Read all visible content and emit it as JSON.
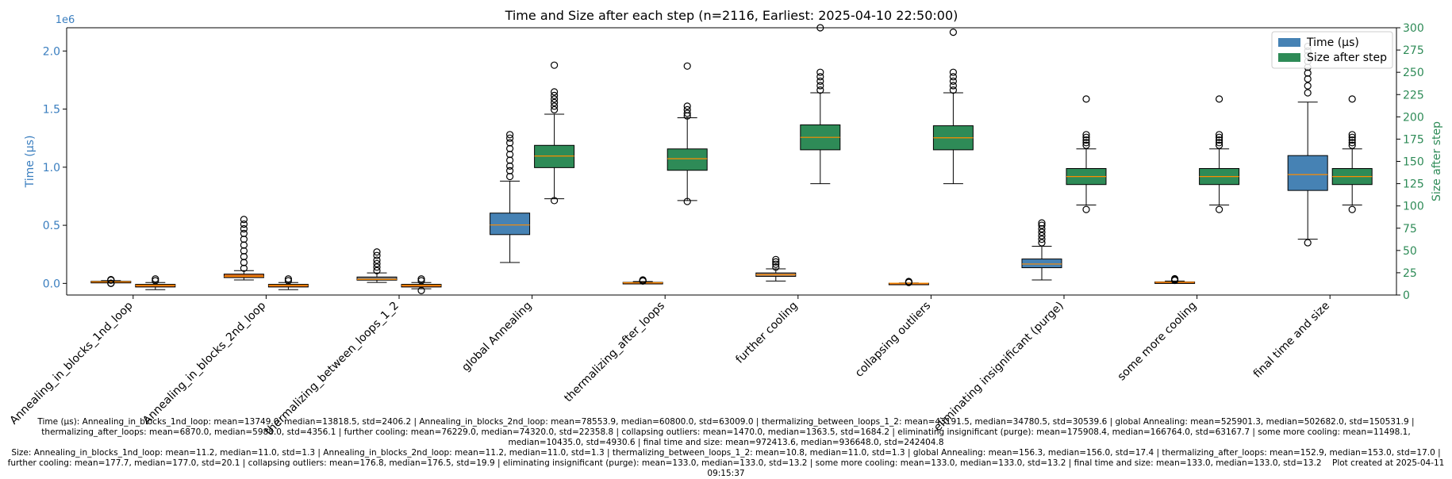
{
  "chart_data": {
    "type": "box",
    "title": "Time and Size after each step (n=2116, Earliest: 2025-04-10 22:50:00)",
    "y_left": {
      "label": "Time (µs)",
      "multiplier": "1e6",
      "range": [
        -0.1,
        2.2
      ],
      "ticks": [
        0.0,
        0.5,
        1.0,
        1.5,
        2.0
      ],
      "tick_labels": [
        "0.0",
        "0.5",
        "1.0",
        "1.5",
        "2.0"
      ],
      "color": "#3a7ebf"
    },
    "y_right": {
      "label": "Size after step",
      "range": [
        0,
        300
      ],
      "ticks": [
        0,
        25,
        50,
        75,
        100,
        125,
        150,
        175,
        200,
        225,
        250,
        275,
        300
      ],
      "tick_labels": [
        "0",
        "25",
        "50",
        "75",
        "100",
        "125",
        "150",
        "175",
        "200",
        "225",
        "250",
        "275",
        "300"
      ],
      "color": "#2e8b57"
    },
    "categories": [
      "Annealing_in_blocks_1nd_loop",
      "Annealing_in_blocks_2nd_loop",
      "thermalizing_between_loops_1_2",
      "global Annealing",
      "thermalizing_after_loops",
      "further cooling",
      "collapsing outliers",
      "eliminating insignificant (purge)",
      "some more cooling",
      "final time and size"
    ],
    "legend": {
      "position": "top-right",
      "entries": [
        {
          "label": "Time (µs)",
          "color": "#4682b4"
        },
        {
          "label": "Size after step",
          "color": "#2e8b57"
        }
      ]
    },
    "series": [
      {
        "name": "Time (µs)",
        "axis": "left",
        "box_colors": [
          "#d2691e",
          "#d2691e",
          "#808080",
          "#4682b4",
          "#d2691e",
          "#a0826d",
          "#d2691e",
          "#4682b4",
          "#d2691e",
          "#4682b4"
        ],
        "boxes": [
          {
            "q1": 10000,
            "median": 13818.5,
            "q3": 18000,
            "whislo": 6000,
            "whishi": 24000,
            "fliers": [
              0,
              2000,
              28000,
              32000
            ]
          },
          {
            "q1": 50000,
            "median": 60800,
            "q3": 80000,
            "whislo": 30000,
            "whishi": 110000,
            "fliers": [
              130000,
              180000,
              230000,
              280000,
              330000,
              380000,
              430000,
              470000,
              510000,
              550000
            ]
          },
          {
            "q1": 28000,
            "median": 34780.5,
            "q3": 55000,
            "whislo": 8000,
            "whishi": 90000,
            "fliers": [
              110000,
              140000,
              170000,
              200000,
              240000,
              270000
            ]
          },
          {
            "q1": 420000,
            "median": 502682,
            "q3": 605000,
            "whislo": 180000,
            "whishi": 880000,
            "fliers": [
              920000,
              970000,
              1010000,
              1060000,
              1110000,
              1160000,
              1210000,
              1250000,
              1280000
            ]
          },
          {
            "q1": 3000,
            "median": 5988,
            "q3": 9000,
            "whislo": 0,
            "whishi": 16000,
            "fliers": [
              20000,
              25000,
              30000
            ]
          },
          {
            "q1": 60000,
            "median": 74320,
            "q3": 90000,
            "whislo": 20000,
            "whishi": 125000,
            "fliers": [
              140000,
              165000,
              185000,
              205000
            ]
          },
          {
            "q1": 500,
            "median": 1363.5,
            "q3": 2000,
            "whislo": 0,
            "whishi": 4000,
            "fliers": [
              8000,
              12000,
              16000
            ]
          },
          {
            "q1": 135000,
            "median": 166764,
            "q3": 210000,
            "whislo": 30000,
            "whishi": 320000,
            "fliers": [
              350000,
              380000,
              410000,
              440000,
              470000,
              500000,
              520000
            ]
          },
          {
            "q1": 8000,
            "median": 10435,
            "q3": 13000,
            "whislo": 4000,
            "whishi": 20000,
            "fliers": [
              26000,
              33000,
              40000
            ]
          },
          {
            "q1": 800000,
            "median": 936648,
            "q3": 1100000,
            "whislo": 380000,
            "whishi": 1560000,
            "fliers": [
              350000,
              1640000,
              1700000,
              1760000,
              1810000,
              1860000,
              1910000,
              1960000,
              2000000,
              2040000
            ]
          }
        ]
      },
      {
        "name": "Size after step",
        "axis": "right",
        "box_colors": [
          "#d2691e",
          "#d2691e",
          "#d2691e",
          "#2e8b57",
          "#2e8b57",
          "#2e8b57",
          "#2e8b57",
          "#2e8b57",
          "#2e8b57",
          "#2e8b57"
        ],
        "boxes": [
          {
            "q1": 9,
            "median": 11,
            "q3": 12,
            "whislo": 6,
            "whishi": 14,
            "fliers": [
              16,
              18
            ]
          },
          {
            "q1": 9,
            "median": 11,
            "q3": 12,
            "whislo": 6,
            "whishi": 14,
            "fliers": [
              16,
              18
            ]
          },
          {
            "q1": 9,
            "median": 11,
            "q3": 12,
            "whislo": 7,
            "whishi": 14,
            "fliers": [
              5,
              16,
              18
            ]
          },
          {
            "q1": 143,
            "median": 156,
            "q3": 168,
            "whislo": 108,
            "whishi": 203,
            "fliers": [
              106,
              208,
              212,
              216,
              220,
              224,
              228,
              258
            ]
          },
          {
            "q1": 140,
            "median": 153,
            "q3": 164,
            "whislo": 106,
            "whishi": 199,
            "fliers": [
              105,
              201,
              204,
              208,
              212,
              257
            ]
          },
          {
            "q1": 163,
            "median": 177,
            "q3": 191,
            "whislo": 125,
            "whishi": 227,
            "fliers": [
              230,
              235,
              240,
              245,
              250,
              300
            ]
          },
          {
            "q1": 163,
            "median": 176.5,
            "q3": 190,
            "whislo": 125,
            "whishi": 227,
            "fliers": [
              230,
              235,
              240,
              245,
              250,
              295
            ]
          },
          {
            "q1": 124,
            "median": 133,
            "q3": 142,
            "whislo": 101,
            "whishi": 164,
            "fliers": [
              96,
              168,
              171,
              174,
              177,
              180,
              220
            ]
          },
          {
            "q1": 124,
            "median": 133,
            "q3": 142,
            "whislo": 101,
            "whishi": 164,
            "fliers": [
              96,
              168,
              171,
              174,
              177,
              180,
              220
            ]
          },
          {
            "q1": 124,
            "median": 133,
            "q3": 142,
            "whislo": 101,
            "whishi": 164,
            "fliers": [
              96,
              168,
              171,
              174,
              177,
              180,
              220
            ]
          }
        ]
      }
    ],
    "grid": false
  },
  "footer": {
    "time_line": "Time (µs): Annealing_in_blocks_1nd_loop: mean=13749.0, median=13818.5, std=2406.2 | Annealing_in_blocks_2nd_loop: mean=78553.9, median=60800.0, std=63009.0 | thermalizing_between_loops_1_2: mean=43191.5, median=34780.5, std=30539.6 | global Annealing: mean=525901.3, median=502682.0, std=150531.9 | thermalizing_after_loops: mean=6870.0, median=5988.0, std=4356.1 | further cooling: mean=76229.0, median=74320.0, std=22358.8 | collapsing outliers: mean=1470.0, median=1363.5, std=1684.2 | eliminating insignificant (purge): mean=175908.4, median=166764.0, std=63167.7 | some more cooling: mean=11498.1, median=10435.0, std=4930.6 | final time and size: mean=972413.6, median=936648.0, std=242404.8",
    "size_line": "Size: Annealing_in_blocks_1nd_loop: mean=11.2, median=11.0, std=1.3 | Annealing_in_blocks_2nd_loop: mean=11.2, median=11.0, std=1.3 | thermalizing_between_loops_1_2: mean=10.8, median=11.0, std=1.3 | global Annealing: mean=156.3, median=156.0, std=17.4 | thermalizing_after_loops: mean=152.9, median=153.0, std=17.0 | further cooling: mean=177.7, median=177.0, std=20.1 | collapsing outliers: mean=176.8, median=176.5, std=19.9 | eliminating insignificant (purge): mean=133.0, median=133.0, std=13.2 | some more cooling: mean=133.0, median=133.0, std=13.2 | final time and size: mean=133.0, median=133.0, std=13.2",
    "created": "Plot created at 2025-04-11 09:15:37"
  }
}
